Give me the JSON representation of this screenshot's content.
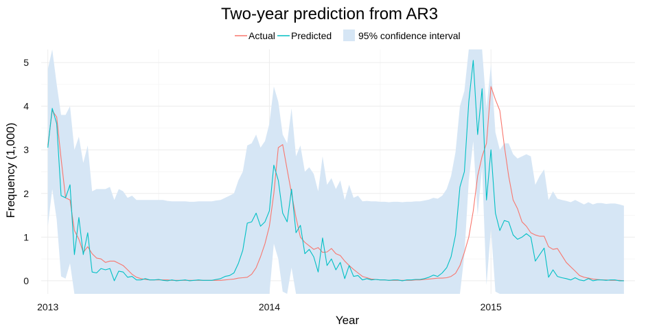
{
  "chart_data": {
    "type": "line",
    "title": "Two-year prediction from AR3",
    "xlabel": "Year",
    "ylabel": "Frequency (1,000)",
    "xlim": [
      2012.97,
      2015.65
    ],
    "ylim": [
      -0.3,
      5.3
    ],
    "x_ticks": [
      2013,
      2014,
      2015
    ],
    "y_ticks": [
      0,
      1,
      2,
      3,
      4,
      5
    ],
    "x_tick_labels": [
      "2013",
      "2014",
      "2015"
    ],
    "y_tick_labels": [
      "0",
      "1",
      "2",
      "3",
      "4",
      "5"
    ],
    "grid": true,
    "legend_position": "top",
    "legend": {
      "actual": "Actual",
      "predicted": "Predicted",
      "ci": "95% confidence interval"
    },
    "colors": {
      "actual": "#F8766D",
      "predicted": "#00BFC4",
      "ci": "#D6E6F5",
      "grid": "#ECECEC"
    },
    "x": [
      2013.0,
      2013.02,
      2013.04,
      2013.06,
      2013.08,
      2013.1,
      2013.12,
      2013.14,
      2013.16,
      2013.18,
      2013.2,
      2013.22,
      2013.24,
      2013.26,
      2013.28,
      2013.3,
      2013.32,
      2013.34,
      2013.36,
      2013.38,
      2013.4,
      2013.42,
      2013.44,
      2013.46,
      2013.48,
      2013.5,
      2013.52,
      2013.54,
      2013.56,
      2013.58,
      2013.6,
      2013.62,
      2013.64,
      2013.66,
      2013.68,
      2013.7,
      2013.72,
      2013.74,
      2013.76,
      2013.78,
      2013.8,
      2013.82,
      2013.84,
      2013.86,
      2013.88,
      2013.9,
      2013.92,
      2013.94,
      2013.96,
      2013.98,
      2014.0,
      2014.02,
      2014.04,
      2014.06,
      2014.08,
      2014.1,
      2014.12,
      2014.14,
      2014.16,
      2014.18,
      2014.2,
      2014.22,
      2014.24,
      2014.26,
      2014.28,
      2014.3,
      2014.32,
      2014.34,
      2014.36,
      2014.38,
      2014.4,
      2014.42,
      2014.44,
      2014.46,
      2014.48,
      2014.5,
      2014.52,
      2014.54,
      2014.56,
      2014.58,
      2014.6,
      2014.62,
      2014.64,
      2014.66,
      2014.68,
      2014.7,
      2014.72,
      2014.74,
      2014.76,
      2014.78,
      2014.8,
      2014.82,
      2014.84,
      2014.86,
      2014.88,
      2014.9,
      2014.92,
      2014.94,
      2014.96,
      2014.98,
      2015.0,
      2015.02,
      2015.04,
      2015.06,
      2015.08,
      2015.1,
      2015.12,
      2015.14,
      2015.16,
      2015.18,
      2015.2,
      2015.22,
      2015.24,
      2015.26,
      2015.28,
      2015.3,
      2015.32,
      2015.34,
      2015.36,
      2015.38,
      2015.4,
      2015.42,
      2015.44,
      2015.46,
      2015.48,
      2015.5,
      2015.52,
      2015.54,
      2015.56,
      2015.58,
      2015.6
    ],
    "series": [
      {
        "name": "Actual",
        "values": [
          3.1,
          3.9,
          3.75,
          2.8,
          1.9,
          1.85,
          1.15,
          0.95,
          0.65,
          0.78,
          0.62,
          0.52,
          0.5,
          0.42,
          0.45,
          0.45,
          0.4,
          0.35,
          0.25,
          0.15,
          0.08,
          0.05,
          0.03,
          0.02,
          0.02,
          0.02,
          0.02,
          0.02,
          0.01,
          0.01,
          0.01,
          0.01,
          0.01,
          0.01,
          0.01,
          0.01,
          0.01,
          0.01,
          0.01,
          0.01,
          0.02,
          0.03,
          0.04,
          0.06,
          0.07,
          0.08,
          0.15,
          0.3,
          0.55,
          0.85,
          1.25,
          2.0,
          3.05,
          3.12,
          2.55,
          2.0,
          1.45,
          1.0,
          0.88,
          0.8,
          0.72,
          0.76,
          0.65,
          0.66,
          0.74,
          0.62,
          0.58,
          0.45,
          0.35,
          0.26,
          0.18,
          0.1,
          0.07,
          0.04,
          0.03,
          0.02,
          0.02,
          0.01,
          0.01,
          0.01,
          0.01,
          0.01,
          0.01,
          0.02,
          0.02,
          0.03,
          0.04,
          0.05,
          0.06,
          0.06,
          0.07,
          0.1,
          0.17,
          0.35,
          0.65,
          1.0,
          1.6,
          2.4,
          2.85,
          3.15,
          4.45,
          4.15,
          3.9,
          3.1,
          2.4,
          1.85,
          1.65,
          1.35,
          1.25,
          1.1,
          1.05,
          1.02,
          1.02,
          0.78,
          0.72,
          0.74,
          0.58,
          0.42,
          0.32,
          0.22,
          0.12,
          0.08,
          0.06,
          0.04,
          0.03,
          0.02,
          0.02,
          0.01,
          0.01,
          0.01,
          0.0
        ]
      },
      {
        "name": "Predicted",
        "values": [
          3.05,
          3.95,
          3.6,
          1.95,
          1.9,
          2.2,
          0.6,
          1.45,
          0.6,
          1.1,
          0.2,
          0.18,
          0.28,
          0.25,
          0.28,
          0.0,
          0.22,
          0.2,
          0.08,
          0.1,
          0.02,
          0.02,
          0.05,
          0.02,
          0.02,
          0.03,
          0.01,
          0.0,
          0.02,
          0.0,
          0.01,
          0.02,
          0.0,
          0.01,
          0.02,
          0.01,
          0.01,
          0.01,
          0.03,
          0.05,
          0.1,
          0.12,
          0.18,
          0.4,
          0.7,
          1.32,
          1.35,
          1.55,
          1.25,
          1.35,
          1.6,
          2.65,
          2.3,
          1.55,
          1.35,
          2.1,
          1.1,
          1.27,
          0.62,
          0.72,
          0.55,
          0.2,
          0.98,
          0.35,
          0.5,
          0.25,
          0.42,
          0.05,
          0.35,
          0.1,
          0.12,
          0.02,
          0.05,
          0.02,
          0.03,
          0.02,
          0.02,
          0.01,
          0.02,
          0.02,
          0.0,
          0.02,
          0.02,
          0.03,
          0.03,
          0.05,
          0.08,
          0.13,
          0.1,
          0.18,
          0.3,
          0.55,
          1.05,
          2.15,
          2.5,
          4.1,
          5.05,
          3.35,
          4.4,
          1.85,
          3.0,
          1.55,
          1.15,
          1.38,
          1.35,
          1.05,
          0.95,
          1.0,
          1.08,
          1.0,
          0.45,
          0.6,
          0.75,
          0.08,
          0.25,
          0.1,
          0.07,
          0.05,
          0.02,
          0.07,
          0.02,
          0.0,
          0.05,
          0.0,
          0.02,
          0.02,
          0.01,
          0.02,
          0.02,
          0.0,
          0.0
        ]
      }
    ],
    "ci_upper": [
      4.85,
      5.3,
      4.5,
      3.8,
      3.8,
      4.0,
      3.0,
      3.3,
      2.7,
      3.1,
      2.05,
      2.1,
      2.1,
      2.1,
      2.15,
      1.85,
      2.1,
      2.05,
      1.9,
      1.95,
      1.85,
      1.85,
      1.85,
      1.85,
      1.85,
      1.85,
      1.85,
      1.83,
      1.82,
      1.82,
      1.82,
      1.82,
      1.81,
      1.81,
      1.82,
      1.82,
      1.82,
      1.82,
      1.84,
      1.85,
      1.9,
      1.95,
      2.0,
      2.3,
      2.5,
      3.1,
      3.15,
      3.35,
      3.05,
      3.2,
      3.6,
      4.45,
      4.1,
      3.35,
      3.15,
      3.95,
      2.85,
      3.1,
      2.5,
      2.6,
      2.45,
      2.05,
      2.85,
      2.2,
      2.35,
      2.1,
      2.3,
      1.85,
      2.2,
      1.9,
      1.95,
      1.82,
      1.83,
      1.82,
      1.82,
      1.81,
      1.81,
      1.8,
      1.81,
      1.81,
      1.8,
      1.81,
      1.81,
      1.82,
      1.82,
      1.84,
      1.86,
      1.9,
      1.88,
      1.95,
      2.1,
      2.4,
      2.95,
      4.0,
      4.35,
      5.3,
      5.3,
      5.3,
      5.3,
      3.95,
      4.95,
      3.4,
      3.0,
      3.15,
      3.15,
      2.9,
      2.8,
      2.85,
      2.9,
      2.85,
      2.2,
      2.4,
      2.55,
      1.85,
      2.05,
      1.88,
      1.85,
      1.83,
      1.8,
      1.85,
      1.8,
      1.75,
      1.8,
      1.75,
      1.78,
      1.78,
      1.76,
      1.77,
      1.77,
      1.75,
      1.72
    ],
    "ci_lower": [
      1.25,
      2.1,
      1.4,
      0.1,
      0.05,
      0.4,
      -0.3,
      -0.3,
      -0.3,
      -0.3,
      -0.3,
      -0.3,
      -0.3,
      -0.3,
      -0.3,
      -0.3,
      -0.3,
      -0.3,
      -0.3,
      -0.3,
      -0.3,
      -0.3,
      -0.3,
      -0.3,
      -0.3,
      -0.3,
      -0.3,
      -0.3,
      -0.3,
      -0.3,
      -0.3,
      -0.3,
      -0.3,
      -0.3,
      -0.3,
      -0.3,
      -0.3,
      -0.3,
      -0.3,
      -0.3,
      -0.3,
      -0.3,
      -0.3,
      -0.3,
      -0.3,
      -0.3,
      -0.3,
      -0.3,
      -0.3,
      -0.3,
      -0.3,
      0.85,
      0.5,
      -0.25,
      -0.3,
      0.3,
      -0.3,
      -0.3,
      -0.3,
      -0.3,
      -0.3,
      -0.3,
      -0.3,
      -0.3,
      -0.3,
      -0.3,
      -0.3,
      -0.3,
      -0.3,
      -0.3,
      -0.3,
      -0.3,
      -0.3,
      -0.3,
      -0.3,
      -0.3,
      -0.3,
      -0.3,
      -0.3,
      -0.3,
      -0.3,
      -0.3,
      -0.3,
      -0.3,
      -0.3,
      -0.3,
      -0.3,
      -0.3,
      -0.3,
      -0.3,
      -0.3,
      -0.3,
      -0.3,
      -0.3,
      0.6,
      2.3,
      3.2,
      1.5,
      2.6,
      -0.1,
      1.2,
      -0.25,
      -0.3,
      -0.3,
      -0.3,
      -0.3,
      -0.3,
      -0.3,
      -0.3,
      -0.3,
      -0.3,
      -0.3,
      -0.3,
      -0.3,
      -0.3,
      -0.3,
      -0.3,
      -0.3,
      -0.3,
      -0.3,
      -0.3,
      -0.3,
      -0.3,
      -0.3,
      -0.3,
      -0.3,
      -0.3,
      -0.3,
      -0.3,
      -0.3,
      -0.3
    ]
  }
}
